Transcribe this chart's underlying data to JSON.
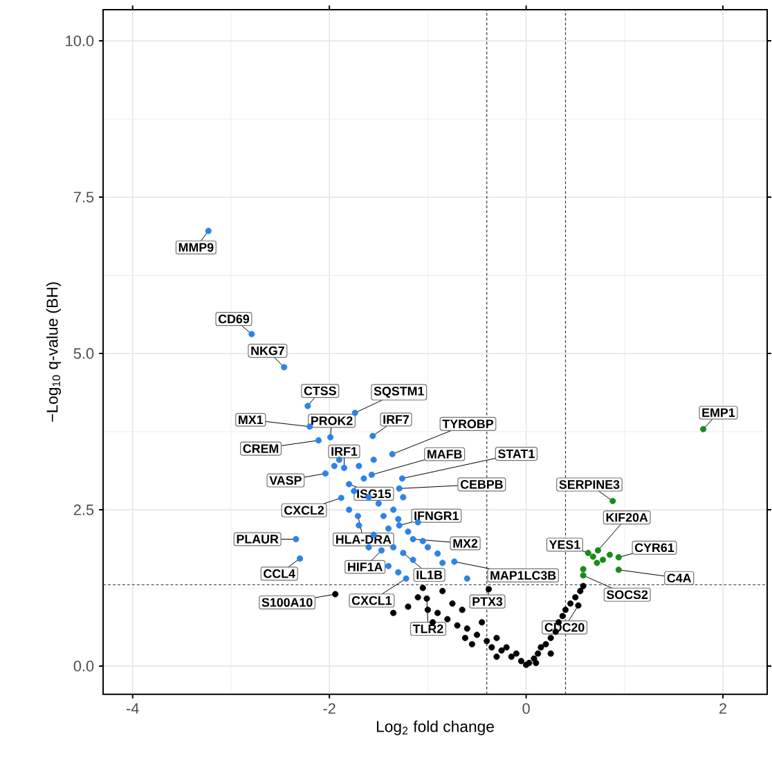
{
  "chart_data": {
    "type": "scatter",
    "xlabel": "Log$_{2}$ fold change",
    "ylabel": "−Log$_{10}$ q-value (BH)",
    "xlim": [
      -4.3,
      2.45
    ],
    "ylim": [
      -0.45,
      10.5
    ],
    "xticks": [
      -4,
      -2,
      0,
      2
    ],
    "yticks": [
      {
        "value": 0,
        "label": "0.0"
      },
      {
        "value": 2.5,
        "label": "2.5"
      },
      {
        "value": 5,
        "label": "5.0"
      },
      {
        "value": 7.5,
        "label": "7.5"
      },
      {
        "value": 10,
        "label": "10.0"
      }
    ],
    "grid": true,
    "series": [
      {
        "color": "#000000",
        "x": [
          -1.2,
          -1.1,
          -1.0,
          -0.9,
          -0.85,
          -0.8,
          -0.7,
          -0.65,
          -0.6,
          -0.5,
          -0.45,
          -0.4,
          -0.35,
          -0.3,
          -0.25,
          -0.2,
          -0.15,
          -0.1,
          -0.05,
          0,
          0.03,
          0.08,
          0.12,
          0.15,
          0.2,
          0.25,
          0.3,
          0.33,
          0.37,
          0.4,
          0.45,
          0.5,
          0.55,
          0.58,
          -0.55,
          -0.3,
          0.1,
          0.25,
          -1.05,
          -0.75,
          -0.95,
          -1.35,
          -0.62,
          -0.38,
          -1.01,
          0.53,
          -1.94
        ],
        "values": [
          0.95,
          1.1,
          0.9,
          0.85,
          1.2,
          0.75,
          0.65,
          0.9,
          0.6,
          0.5,
          0.7,
          0.4,
          0.3,
          0.45,
          0.25,
          0.3,
          0.15,
          0.2,
          0.08,
          0.02,
          0.05,
          0.12,
          0.2,
          0.3,
          0.35,
          0.45,
          0.55,
          0.7,
          0.8,
          0.9,
          1.0,
          1.1,
          1.2,
          1.28,
          0.35,
          0.15,
          0.05,
          0.2,
          1.25,
          1.0,
          0.7,
          0.85,
          0.45,
          1.23,
          1.08,
          0.97,
          1.15
        ]
      },
      {
        "color": "#2b83e8",
        "x": [
          -3.23,
          -2.79,
          -2.46,
          -2.22,
          -1.74,
          -2.2,
          -1.99,
          -2.11,
          -1.56,
          -1.36,
          -1.85,
          -1.57,
          -1.26,
          -2.04,
          -1.29,
          -1.8,
          -1.88,
          -1.29,
          -2.34,
          -1.71,
          -1.15,
          -2.3,
          -1.47,
          -1.25,
          -0.73,
          -1.22,
          -1.9,
          -1.95,
          -1.7,
          -1.65,
          -1.75,
          -1.6,
          -1.5,
          -1.45,
          -1.35,
          -1.3,
          -1.4,
          -1.2,
          -1.1,
          -1.05,
          -1.0,
          -0.9,
          -0.85,
          -1.15,
          -1.35,
          -1.55,
          -1.6,
          -1.4,
          -1.3,
          -0.6,
          -1.7,
          -1.8,
          -1.25,
          -1.55
        ],
        "values": [
          6.96,
          5.31,
          4.78,
          4.16,
          4.05,
          3.83,
          3.66,
          3.61,
          3.68,
          3.39,
          3.17,
          3.06,
          3.0,
          3.08,
          2.84,
          2.91,
          2.69,
          2.25,
          2.03,
          2.4,
          2.03,
          1.72,
          1.85,
          1.81,
          1.67,
          1.4,
          3.3,
          3.2,
          3.2,
          3.0,
          2.8,
          2.7,
          2.6,
          2.4,
          2.5,
          2.35,
          2.2,
          2.15,
          2.3,
          2.0,
          1.9,
          1.8,
          1.65,
          1.7,
          1.9,
          2.1,
          1.9,
          1.6,
          1.5,
          1.4,
          2.25,
          2.5,
          2.7,
          3.3
        ]
      },
      {
        "color": "#1a8a1a",
        "x": [
          1.8,
          0.88,
          0.73,
          0.63,
          0.94,
          0.94,
          0.58,
          0.68,
          0.78,
          0.85,
          0.58,
          0.72
        ],
        "values": [
          3.79,
          2.64,
          1.85,
          1.81,
          1.74,
          1.54,
          1.45,
          1.75,
          1.7,
          1.78,
          1.55,
          1.65
        ]
      }
    ],
    "ref_lines": [
      {
        "axis": "x",
        "value": -0.4,
        "line_style": "dashed"
      },
      {
        "axis": "x",
        "value": 0.4,
        "line_style": "dashed"
      },
      {
        "axis": "y",
        "value": 1.3,
        "line_style": "dashed"
      }
    ],
    "annotations": [
      {
        "text": "MMP9",
        "x": -3.23,
        "y": 6.96
      },
      {
        "text": "CD69",
        "x": -2.79,
        "y": 5.31
      },
      {
        "text": "NKG7",
        "x": -2.46,
        "y": 4.78
      },
      {
        "text": "CTSS",
        "x": -2.22,
        "y": 4.16
      },
      {
        "text": "SQSTM1",
        "x": -1.74,
        "y": 4.05
      },
      {
        "text": "MX1",
        "x": -2.2,
        "y": 3.83
      },
      {
        "text": "PROK2",
        "x": -1.99,
        "y": 3.66
      },
      {
        "text": "CREM",
        "x": -2.11,
        "y": 3.61
      },
      {
        "text": "IRF7",
        "x": -1.56,
        "y": 3.68
      },
      {
        "text": "TYROBP",
        "x": -1.36,
        "y": 3.39
      },
      {
        "text": "IRF1",
        "x": -1.85,
        "y": 3.17
      },
      {
        "text": "MAFB",
        "x": -1.57,
        "y": 3.06
      },
      {
        "text": "STAT1",
        "x": -1.26,
        "y": 3.0
      },
      {
        "text": "VASP",
        "x": -2.04,
        "y": 3.08
      },
      {
        "text": "CEBPB",
        "x": -1.29,
        "y": 2.84
      },
      {
        "text": "ISG15",
        "x": -1.8,
        "y": 2.91
      },
      {
        "text": "CXCL2",
        "x": -1.88,
        "y": 2.69
      },
      {
        "text": "IFNGR1",
        "x": -1.29,
        "y": 2.25
      },
      {
        "text": "PLAUR",
        "x": -2.34,
        "y": 2.03
      },
      {
        "text": "HLA-DRA",
        "x": -1.71,
        "y": 2.4
      },
      {
        "text": "MX2",
        "x": -1.15,
        "y": 2.03
      },
      {
        "text": "CCL4",
        "x": -2.3,
        "y": 1.72
      },
      {
        "text": "HIF1A",
        "x": -1.47,
        "y": 1.85
      },
      {
        "text": "IL1B",
        "x": -1.25,
        "y": 1.81
      },
      {
        "text": "MAP1LC3B",
        "x": -0.73,
        "y": 1.67
      },
      {
        "text": "S100A10",
        "x": -1.94,
        "y": 1.15
      },
      {
        "text": "CXCL1",
        "x": -1.22,
        "y": 1.4
      },
      {
        "text": "PTX3",
        "x": -0.38,
        "y": 1.23
      },
      {
        "text": "TLR2",
        "x": -1.01,
        "y": 1.08
      },
      {
        "text": "CDC20",
        "x": 0.53,
        "y": 0.97
      },
      {
        "text": "EMP1",
        "x": 1.8,
        "y": 3.79
      },
      {
        "text": "SERPINE3",
        "x": 0.88,
        "y": 2.64
      },
      {
        "text": "KIF20A",
        "x": 0.73,
        "y": 1.85
      },
      {
        "text": "YES1",
        "x": 0.63,
        "y": 1.81
      },
      {
        "text": "CYR61",
        "x": 0.94,
        "y": 1.74
      },
      {
        "text": "C4A",
        "x": 0.94,
        "y": 1.54
      },
      {
        "text": "SOCS2",
        "x": 0.58,
        "y": 1.45
      }
    ]
  }
}
